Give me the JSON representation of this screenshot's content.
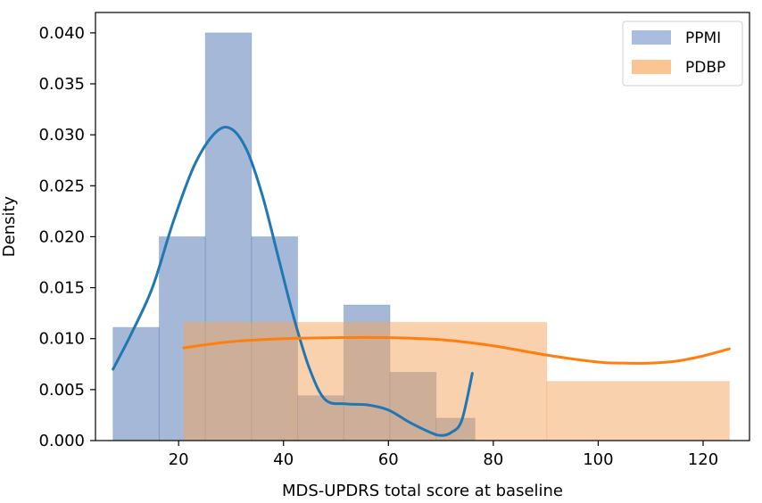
{
  "chart_data": {
    "type": "bar",
    "xlabel": "MDS-UPDRS total score at baseline",
    "ylabel": "Density",
    "xlim": [
      4.15,
      128.85
    ],
    "ylim": [
      0,
      0.042
    ],
    "x_ticks": [
      20,
      40,
      60,
      80,
      100,
      120
    ],
    "y_ticks": [
      0.0,
      0.005,
      0.01,
      0.015,
      0.02,
      0.025,
      0.03,
      0.035,
      0.04
    ],
    "x_tick_labels": [
      "20",
      "40",
      "60",
      "80",
      "100",
      "120"
    ],
    "y_tick_labels": [
      "0.000",
      "0.005",
      "0.010",
      "0.015",
      "0.020",
      "0.025",
      "0.030",
      "0.035",
      "0.040"
    ],
    "grid": false,
    "legend_position": "top-right",
    "series": [
      {
        "name": "PPMI",
        "kind": "histogram",
        "color": "#4c72b0",
        "bin_edges": [
          7.5,
          16.3,
          25.1,
          33.9,
          42.7,
          51.5,
          60.3,
          69.1,
          76.5
        ],
        "densities": [
          0.0111,
          0.02,
          0.04,
          0.02,
          0.0044,
          0.0133,
          0.0067,
          0.0022
        ],
        "kde_x": [
          7.5,
          11,
          15,
          19,
          23,
          27,
          30,
          33,
          36,
          39,
          42,
          45,
          48,
          52,
          56,
          60,
          64,
          68,
          70,
          72,
          74,
          76
        ],
        "kde_y": [
          0.007,
          0.0105,
          0.015,
          0.0215,
          0.027,
          0.0302,
          0.0306,
          0.0285,
          0.024,
          0.018,
          0.012,
          0.007,
          0.004,
          0.0036,
          0.0035,
          0.003,
          0.0018,
          0.0008,
          0.0005,
          0.0008,
          0.002,
          0.0066
        ]
      },
      {
        "name": "PDBP",
        "kind": "histogram",
        "color": "#f39c4a",
        "bin_edges": [
          21,
          42.3,
          90.2,
          125.0
        ],
        "densities": [
          0.0116,
          0.0116,
          0.0058
        ],
        "kde_x": [
          21,
          30,
          40,
          50,
          60,
          70,
          80,
          90,
          100,
          105,
          110,
          115,
          120,
          125
        ],
        "kde_y": [
          0.0091,
          0.0097,
          0.01,
          0.0101,
          0.0101,
          0.0099,
          0.0093,
          0.0084,
          0.0077,
          0.0076,
          0.0076,
          0.0078,
          0.0083,
          0.009
        ]
      }
    ]
  },
  "legend": {
    "items": [
      {
        "label": "PPMI",
        "color": "#a8bde0"
      },
      {
        "label": "PDBP",
        "color": "#fbc591"
      }
    ]
  },
  "colors": {
    "ppmi_kde": "#1f77b4",
    "pdbp_kde": "#ff7f0e",
    "ppmi_bar": "#4c72b0",
    "pdbp_bar": "#f5a35b"
  }
}
